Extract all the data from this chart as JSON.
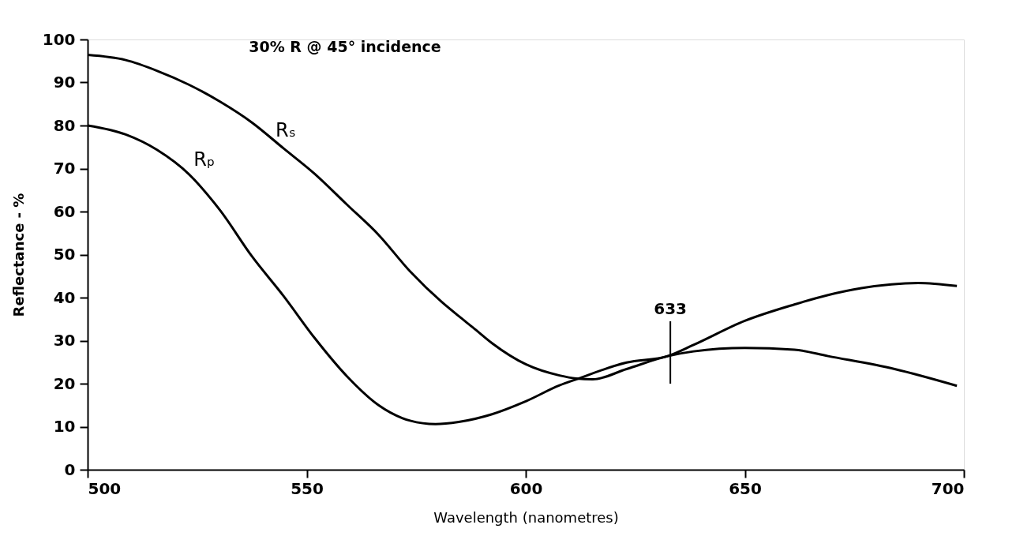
{
  "chart_data": {
    "type": "line",
    "title": "30% R @ 45° incidence",
    "xlabel": "Wavelength (nanometres)",
    "ylabel": "Reflectance - %",
    "xlim": [
      500,
      700
    ],
    "xticks": [
      500,
      550,
      600,
      650,
      700
    ],
    "ylim": [
      0,
      100
    ],
    "yticks": [
      0,
      10,
      20,
      30,
      40,
      50,
      60,
      70,
      80,
      90,
      100
    ],
    "grid": false,
    "legend": false,
    "marker": "none",
    "line_style": "solid",
    "series": [
      {
        "name": "Rₛ",
        "color": "#000000",
        "x": [
          500,
          508.7,
          515.9,
          523.1,
          530.3,
          537.5,
          544.7,
          551.9,
          559.2,
          566.4,
          573.6,
          580.8,
          584.7,
          588,
          592.3,
          600,
          607.7,
          611.5,
          615.3,
          623,
          632.4,
          638.3,
          650,
          661.3,
          669,
          684.2,
          698.4
        ],
        "values": [
          96.4,
          95.2,
          92.7,
          89.5,
          85.5,
          80.7,
          74.7,
          68.7,
          61.6,
          54.6,
          46.1,
          39,
          35.7,
          33,
          29.4,
          24.5,
          21.9,
          21.2,
          21,
          23.4,
          26.4,
          27.5,
          28.3,
          27.9,
          26.4,
          23.4,
          19.5
        ]
      },
      {
        "name": "Rₚ",
        "color": "#000000",
        "x": [
          500,
          508.7,
          515.9,
          523.1,
          530.3,
          537.5,
          544.7,
          551.9,
          559.2,
          566.4,
          573.6,
          579.4,
          584.7,
          592.3,
          600,
          607.7,
          611.5,
          623,
          632.4,
          638.3,
          650,
          661.3,
          669,
          676.6,
          689.6,
          698.4
        ],
        "values": [
          80,
          77.9,
          74.3,
          68.7,
          60.2,
          49.6,
          40.4,
          30.5,
          21.7,
          15,
          11.4,
          10.6,
          11.1,
          12.9,
          15.9,
          19.6,
          21,
          24.9,
          26.4,
          29,
          34.6,
          38.4,
          40.6,
          42.2,
          43.4,
          42.7
        ]
      }
    ],
    "ref_lines": [
      {
        "axis": "x",
        "value": 633,
        "label": "633"
      }
    ]
  }
}
